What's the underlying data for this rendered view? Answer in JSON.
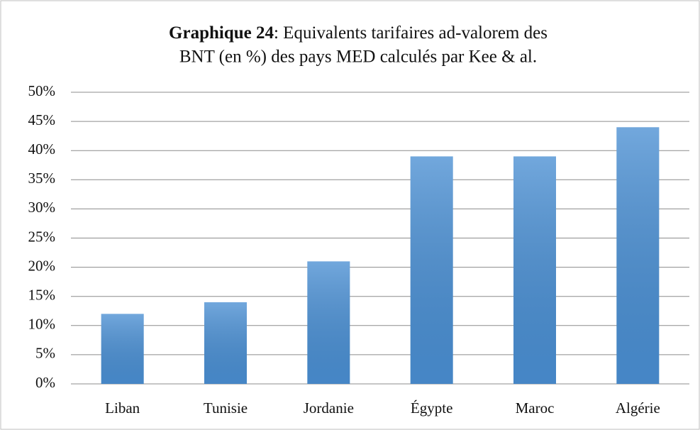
{
  "chart_data": {
    "type": "bar",
    "title_prefix": "Graphique 24",
    "title": [
      ": Equivalents tarifaires ad-valorem des",
      "BNT (en %) des pays MED calculés par Kee & al."
    ],
    "categories": [
      "Liban",
      "Tunisie",
      "Jordanie",
      "Égypte",
      "Maroc",
      "Algérie"
    ],
    "values": [
      12,
      14,
      21,
      39,
      39,
      44
    ],
    "color": "#4a8fd3",
    "ylim": [
      0,
      50
    ],
    "yticks": [
      {
        "value": 0,
        "label": "0%"
      },
      {
        "value": 5,
        "label": "5%"
      },
      {
        "value": 10,
        "label": "10%"
      },
      {
        "value": 15,
        "label": "15%"
      },
      {
        "value": 20,
        "label": "20%"
      },
      {
        "value": 25,
        "label": "25%"
      },
      {
        "value": 30,
        "label": "30%"
      },
      {
        "value": 35,
        "label": "35%"
      },
      {
        "value": 40,
        "label": "40%"
      },
      {
        "value": 45,
        "label": "45%"
      },
      {
        "value": 50,
        "label": "50%"
      }
    ],
    "grid": true
  }
}
